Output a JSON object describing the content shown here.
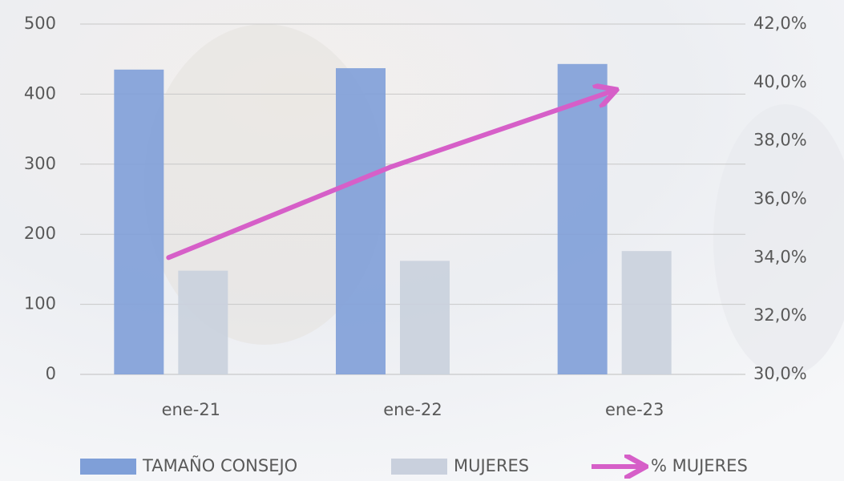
{
  "chart_data": {
    "type": "bar_line",
    "categories": [
      "ene-21",
      "ene-22",
      "ene-23"
    ],
    "series": [
      {
        "name": "TAMAÑO CONSEJO",
        "type": "bar",
        "color": "#7f9fd8",
        "values": [
          435,
          437,
          443
        ]
      },
      {
        "name": "MUJERES",
        "type": "bar",
        "color": "#c9d0dd",
        "values": [
          148,
          162,
          176
        ]
      },
      {
        "name": "% MUJERES",
        "type": "line",
        "axis": "y2",
        "color": "#d65fc8",
        "values": [
          34.0,
          37.1,
          39.7
        ]
      }
    ],
    "ylim": [
      0,
      500
    ],
    "yticks": [
      0,
      100,
      200,
      300,
      400,
      500
    ],
    "y2lim": [
      30,
      42
    ],
    "y2ticks": [
      {
        "value": 30,
        "label": "30,0%"
      },
      {
        "value": 32,
        "label": "32,0%"
      },
      {
        "value": 34,
        "label": "34,0%"
      },
      {
        "value": 36,
        "label": "36,0%"
      },
      {
        "value": 38,
        "label": "38,0%"
      },
      {
        "value": 40,
        "label": "40,0%"
      },
      {
        "value": 42,
        "label": "42,0%"
      }
    ],
    "grid": true,
    "legend": "bottom"
  }
}
